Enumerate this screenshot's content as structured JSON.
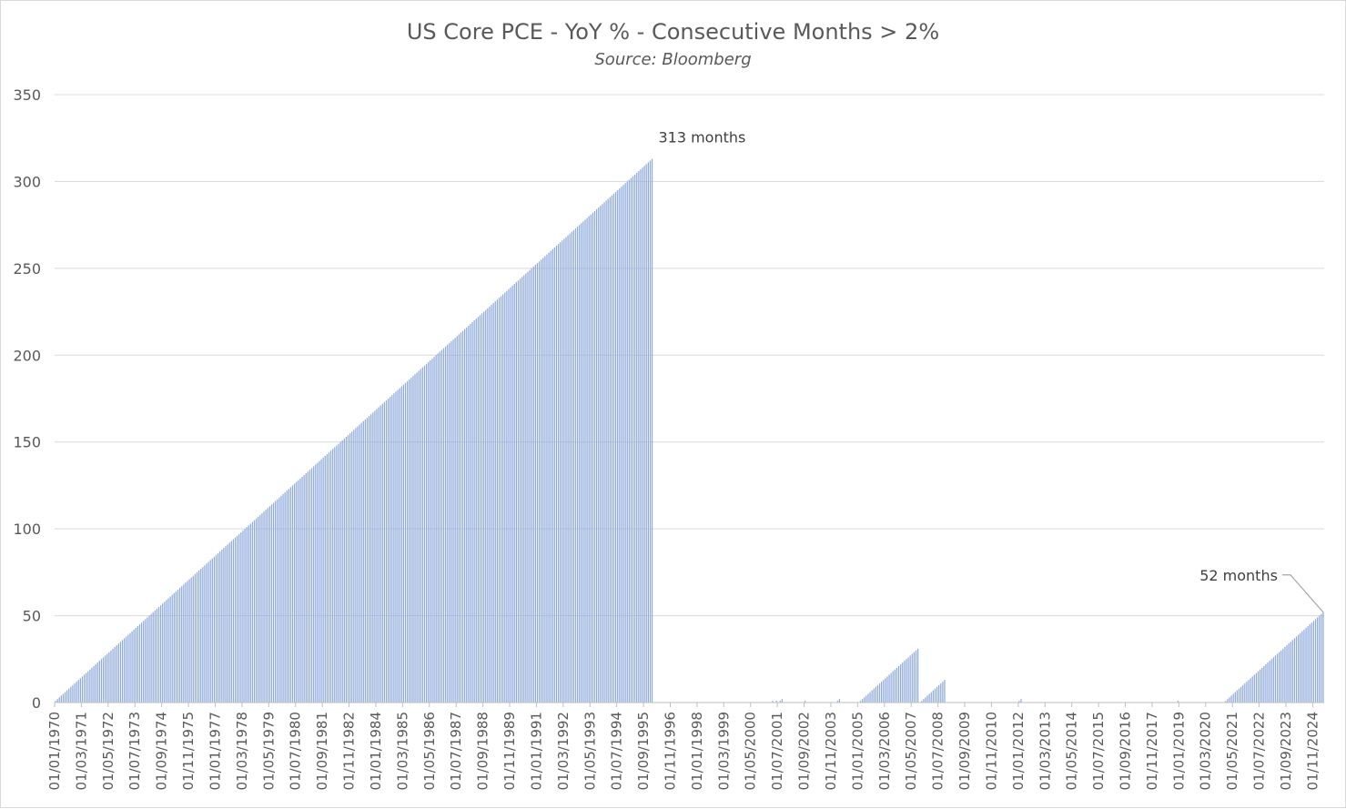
{
  "chart_data": {
    "type": "bar",
    "title": "US Core PCE - YoY % - Consecutive Months > 2%",
    "subtitle": "Source: Bloomberg",
    "xlabel": "",
    "ylabel": "",
    "ylim": [
      0,
      350
    ],
    "yticks": [
      0,
      50,
      100,
      150,
      200,
      250,
      300,
      350
    ],
    "grid": true,
    "bar_color": "#8faadc",
    "x_start": "1970-01",
    "x_end": "2025-04",
    "xtick_labels": [
      "01/01/1970",
      "01/03/1971",
      "01/05/1972",
      "01/07/1973",
      "01/09/1974",
      "01/11/1975",
      "01/01/1977",
      "01/03/1978",
      "01/05/1979",
      "01/07/1980",
      "01/09/1981",
      "01/11/1982",
      "01/01/1984",
      "01/03/1985",
      "01/05/1986",
      "01/07/1987",
      "01/09/1988",
      "01/11/1989",
      "01/01/1991",
      "01/03/1992",
      "01/05/1993",
      "01/07/1994",
      "01/09/1995",
      "01/11/1996",
      "01/01/1998",
      "01/03/1999",
      "01/05/2000",
      "01/07/2001",
      "01/09/2002",
      "01/11/2003",
      "01/01/2005",
      "01/03/2006",
      "01/05/2007",
      "01/07/2008",
      "01/09/2009",
      "01/11/2010",
      "01/01/2012",
      "01/03/2013",
      "01/05/2014",
      "01/07/2015",
      "01/09/2016",
      "01/11/2017",
      "01/01/2019",
      "01/03/2020",
      "01/05/2021",
      "01/07/2022",
      "01/09/2023",
      "01/11/2024"
    ],
    "series": [
      {
        "runs": [
          {
            "start": "1970-01",
            "from": 1,
            "to": 313
          },
          {
            "start": "2001-04",
            "from": 1,
            "to": 1
          },
          {
            "start": "2001-06",
            "from": 1,
            "to": 1
          },
          {
            "start": "2001-08",
            "from": 1,
            "to": 2
          },
          {
            "start": "2002-09",
            "from": 1,
            "to": 1
          },
          {
            "start": "2004-02",
            "from": 1,
            "to": 2
          },
          {
            "start": "2005-02",
            "from": 1,
            "to": 31
          },
          {
            "start": "2007-10",
            "from": 1,
            "to": 13
          },
          {
            "start": "2012-01",
            "from": 1,
            "to": 2
          },
          {
            "start": "2018-12",
            "from": 1,
            "to": 1
          },
          {
            "start": "2021-01",
            "from": 1,
            "to": 52
          }
        ]
      }
    ],
    "annotations": [
      {
        "text": "313 months",
        "x": "1996-01",
        "y": 313
      },
      {
        "text": "52 months",
        "x": "2025-04",
        "y": 52
      }
    ]
  }
}
